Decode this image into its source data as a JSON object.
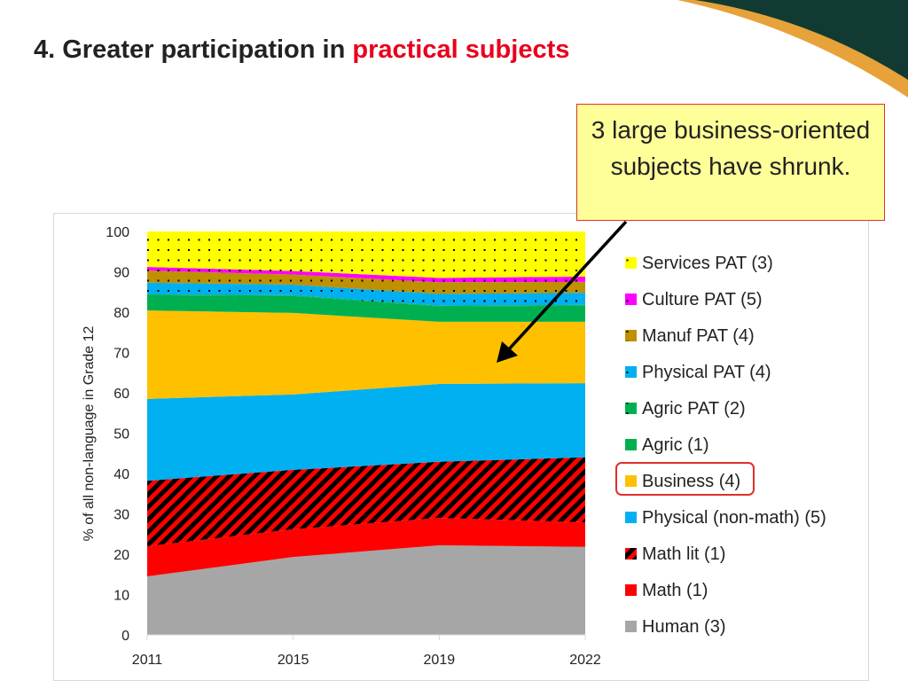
{
  "title": {
    "prefix": "4. Greater participation in ",
    "highlight": "practical subjects"
  },
  "callout": {
    "text": "3 large business-oriented subjects have shrunk."
  },
  "colors": {
    "title_highlight": "#e8001c",
    "callout_bg": "#ffff99",
    "callout_border": "#e0302a"
  },
  "chart_data": {
    "type": "area",
    "stacked": true,
    "title": "",
    "xlabel": "",
    "ylabel": "% of all non-language in Grade 12",
    "x": [
      "2011",
      "2015",
      "2019",
      "2022"
    ],
    "ylim": [
      0,
      100
    ],
    "yticks": [
      0,
      10,
      20,
      30,
      40,
      50,
      60,
      70,
      80,
      90,
      100
    ],
    "legend_placement": "right",
    "highlighted_legend": "Business (4)",
    "series": [
      {
        "name": "Human (3)",
        "color": "#a6a6a6",
        "pattern": "none",
        "values": [
          14.5,
          19.3,
          22.2,
          21.8
        ]
      },
      {
        "name": "Math (1)",
        "color": "#ff0000",
        "pattern": "none",
        "values": [
          7.5,
          6.9,
          6.8,
          6.1
        ]
      },
      {
        "name": "Math lit (1)",
        "color": "#ff0000",
        "pattern": "stripes",
        "values": [
          16.2,
          14.7,
          13.9,
          16.1
        ]
      },
      {
        "name": "Physical (non-math) (5)",
        "color": "#00b0f0",
        "pattern": "none",
        "values": [
          20.3,
          18.7,
          19.3,
          18.4
        ]
      },
      {
        "name": "Business (4)",
        "color": "#ffc000",
        "pattern": "none",
        "values": [
          21.9,
          20.2,
          15.4,
          15.2
        ]
      },
      {
        "name": "Agric (1)",
        "color": "#00b050",
        "pattern": "none",
        "values": [
          3.8,
          4.2,
          3.8,
          4.0
        ]
      },
      {
        "name": "Agric PAT (2)",
        "color": "#00b050",
        "pattern": "dots",
        "values": [
          0.2,
          0.2,
          0.2,
          0.2
        ]
      },
      {
        "name": "Physical PAT (4)",
        "color": "#00b0f0",
        "pattern": "dots",
        "values": [
          2.9,
          2.6,
          2.9,
          3.0
        ]
      },
      {
        "name": "Manuf PAT (4)",
        "color": "#bf9000",
        "pattern": "dots",
        "values": [
          3.0,
          2.5,
          2.9,
          2.7
        ]
      },
      {
        "name": "Culture PAT (5)",
        "color": "#ff00ff",
        "pattern": "dots",
        "values": [
          0.9,
          0.9,
          1.1,
          1.3
        ]
      },
      {
        "name": "Services PAT (3)",
        "color": "#ffff00",
        "pattern": "dots",
        "values": [
          8.8,
          9.8,
          11.5,
          11.2
        ]
      }
    ]
  }
}
